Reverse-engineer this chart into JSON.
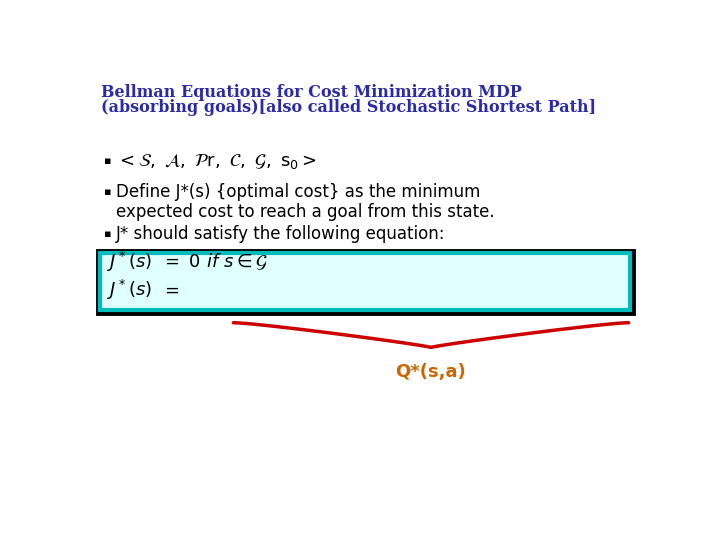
{
  "title_line1": "Bellman Equations for Cost Minimization MDP",
  "title_line2": "(absorbing goals)[also called Stochastic Shortest Path]",
  "title_color": "#2b2baa",
  "title_fontsize": 11.5,
  "bullet2_line1": "Define J*(s) {optimal cost} as the minimum",
  "bullet2_line2": "expected cost to reach a goal from this state.",
  "bullet3": "J* should satisfy the following equation:",
  "box_bg": "#e0ffff",
  "box_border_outer": "#000000",
  "box_border_inner": "#00bbbb",
  "brace_color": "#cc0000",
  "qstar_label": "Q*(s,a)",
  "qstar_color": "#cc6600",
  "background_color": "#ffffff"
}
